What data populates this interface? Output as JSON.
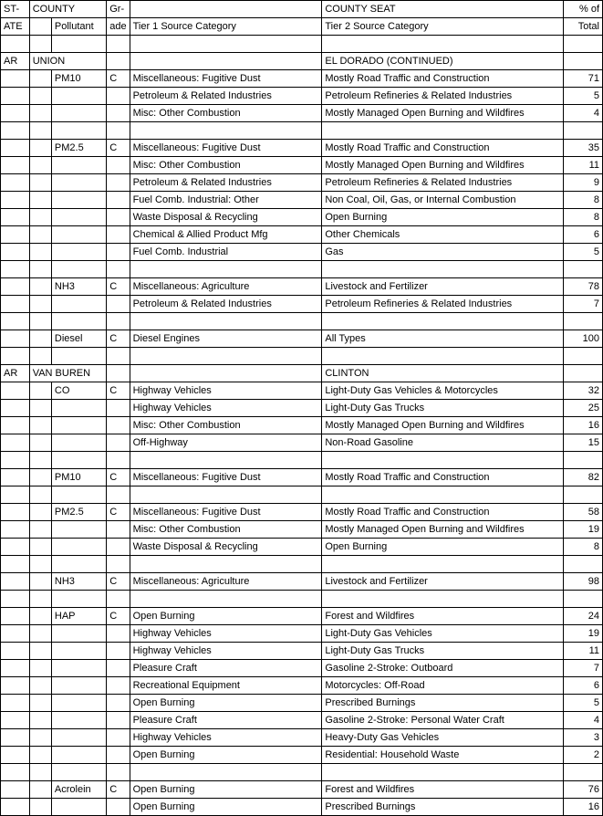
{
  "headers": {
    "state1": "ST-",
    "state2": "ATE",
    "county": "COUNTY",
    "pollutant": "Pollutant",
    "grade1": "Gr-",
    "grade2": "ade",
    "tier1": "Tier 1 Source Category",
    "county_seat": "COUNTY SEAT",
    "tier2": "Tier 2 Source Category",
    "pct1": "% of",
    "pct2": "Total"
  },
  "rows": [
    {
      "state": "AR",
      "county": "UNION",
      "pollutant": "",
      "grade": "",
      "tier1": "",
      "tier2": "EL DORADO (CONTINUED)",
      "pct": ""
    },
    {
      "state": "",
      "county": "",
      "pollutant": "PM10",
      "grade": "C",
      "tier1": "Miscellaneous: Fugitive Dust",
      "tier2": "Mostly Road Traffic and Construction",
      "pct": "71"
    },
    {
      "state": "",
      "county": "",
      "pollutant": "",
      "grade": "",
      "tier1": "Petroleum & Related Industries",
      "tier2": "Petroleum Refineries & Related Industries",
      "pct": "5"
    },
    {
      "state": "",
      "county": "",
      "pollutant": "",
      "grade": "",
      "tier1": "Misc: Other Combustion",
      "tier2": "Mostly Managed Open Burning and Wildfires",
      "pct": "4"
    },
    {
      "state": "",
      "county": "",
      "pollutant": "",
      "grade": "",
      "tier1": "",
      "tier2": "",
      "pct": ""
    },
    {
      "state": "",
      "county": "",
      "pollutant": "PM2.5",
      "grade": "C",
      "tier1": "Miscellaneous: Fugitive Dust",
      "tier2": "Mostly Road Traffic and Construction",
      "pct": "35"
    },
    {
      "state": "",
      "county": "",
      "pollutant": "",
      "grade": "",
      "tier1": "Misc: Other Combustion",
      "tier2": "Mostly Managed Open Burning and Wildfires",
      "pct": "11"
    },
    {
      "state": "",
      "county": "",
      "pollutant": "",
      "grade": "",
      "tier1": "Petroleum & Related Industries",
      "tier2": "Petroleum Refineries & Related Industries",
      "pct": "9"
    },
    {
      "state": "",
      "county": "",
      "pollutant": "",
      "grade": "",
      "tier1": "Fuel Comb. Industrial: Other",
      "tier2": "Non Coal, Oil, Gas, or Internal Combustion",
      "pct": "8"
    },
    {
      "state": "",
      "county": "",
      "pollutant": "",
      "grade": "",
      "tier1": "Waste Disposal & Recycling",
      "tier2": "Open Burning",
      "pct": "8"
    },
    {
      "state": "",
      "county": "",
      "pollutant": "",
      "grade": "",
      "tier1": "Chemical & Allied Product Mfg",
      "tier2": "Other Chemicals",
      "pct": "6"
    },
    {
      "state": "",
      "county": "",
      "pollutant": "",
      "grade": "",
      "tier1": "Fuel Comb. Industrial",
      "tier2": "Gas",
      "pct": "5"
    },
    {
      "state": "",
      "county": "",
      "pollutant": "",
      "grade": "",
      "tier1": "",
      "tier2": "",
      "pct": ""
    },
    {
      "state": "",
      "county": "",
      "pollutant": "NH3",
      "grade": "C",
      "tier1": "Miscellaneous: Agriculture",
      "tier2": "Livestock and Fertilizer",
      "pct": "78"
    },
    {
      "state": "",
      "county": "",
      "pollutant": "",
      "grade": "",
      "tier1": "Petroleum & Related Industries",
      "tier2": "Petroleum Refineries & Related Industries",
      "pct": "7"
    },
    {
      "state": "",
      "county": "",
      "pollutant": "",
      "grade": "",
      "tier1": "",
      "tier2": "",
      "pct": ""
    },
    {
      "state": "",
      "county": "",
      "pollutant": "Diesel",
      "grade": "C",
      "tier1": "Diesel Engines",
      "tier2": "All Types",
      "pct": "100"
    },
    {
      "state": "",
      "county": "",
      "pollutant": "",
      "grade": "",
      "tier1": "",
      "tier2": "",
      "pct": ""
    },
    {
      "state": "AR",
      "county": "VAN BUREN",
      "pollutant": "",
      "grade": "",
      "tier1": "",
      "tier2": "CLINTON",
      "pct": ""
    },
    {
      "state": "",
      "county": "",
      "pollutant": "CO",
      "grade": "C",
      "tier1": "Highway Vehicles",
      "tier2": "Light-Duty Gas Vehicles & Motorcycles",
      "pct": "32"
    },
    {
      "state": "",
      "county": "",
      "pollutant": "",
      "grade": "",
      "tier1": "Highway Vehicles",
      "tier2": "Light-Duty Gas Trucks",
      "pct": "25"
    },
    {
      "state": "",
      "county": "",
      "pollutant": "",
      "grade": "",
      "tier1": "Misc: Other Combustion",
      "tier2": "Mostly Managed Open Burning and Wildfires",
      "pct": "16"
    },
    {
      "state": "",
      "county": "",
      "pollutant": "",
      "grade": "",
      "tier1": "Off-Highway",
      "tier2": "Non-Road Gasoline",
      "pct": "15"
    },
    {
      "state": "",
      "county": "",
      "pollutant": "",
      "grade": "",
      "tier1": "",
      "tier2": "",
      "pct": ""
    },
    {
      "state": "",
      "county": "",
      "pollutant": "PM10",
      "grade": "C",
      "tier1": "Miscellaneous: Fugitive Dust",
      "tier2": "Mostly Road Traffic and Construction",
      "pct": "82"
    },
    {
      "state": "",
      "county": "",
      "pollutant": "",
      "grade": "",
      "tier1": "",
      "tier2": "",
      "pct": ""
    },
    {
      "state": "",
      "county": "",
      "pollutant": "PM2.5",
      "grade": "C",
      "tier1": "Miscellaneous: Fugitive Dust",
      "tier2": "Mostly Road Traffic and Construction",
      "pct": "58"
    },
    {
      "state": "",
      "county": "",
      "pollutant": "",
      "grade": "",
      "tier1": "Misc: Other Combustion",
      "tier2": "Mostly Managed Open Burning and Wildfires",
      "pct": "19"
    },
    {
      "state": "",
      "county": "",
      "pollutant": "",
      "grade": "",
      "tier1": "Waste Disposal & Recycling",
      "tier2": "Open Burning",
      "pct": "8"
    },
    {
      "state": "",
      "county": "",
      "pollutant": "",
      "grade": "",
      "tier1": "",
      "tier2": "",
      "pct": ""
    },
    {
      "state": "",
      "county": "",
      "pollutant": "NH3",
      "grade": "C",
      "tier1": "Miscellaneous: Agriculture",
      "tier2": "Livestock and Fertilizer",
      "pct": "98"
    },
    {
      "state": "",
      "county": "",
      "pollutant": "",
      "grade": "",
      "tier1": "",
      "tier2": "",
      "pct": ""
    },
    {
      "state": "",
      "county": "",
      "pollutant": "HAP",
      "grade": "C",
      "tier1": "Open Burning",
      "tier2": "Forest and Wildfires",
      "pct": "24"
    },
    {
      "state": "",
      "county": "",
      "pollutant": "",
      "grade": "",
      "tier1": "Highway Vehicles",
      "tier2": "Light-Duty Gas Vehicles",
      "pct": "19"
    },
    {
      "state": "",
      "county": "",
      "pollutant": "",
      "grade": "",
      "tier1": "Highway Vehicles",
      "tier2": "Light-Duty Gas Trucks",
      "pct": "11"
    },
    {
      "state": "",
      "county": "",
      "pollutant": "",
      "grade": "",
      "tier1": "Pleasure Craft",
      "tier2": "Gasoline 2-Stroke: Outboard",
      "pct": "7"
    },
    {
      "state": "",
      "county": "",
      "pollutant": "",
      "grade": "",
      "tier1": "Recreational Equipment",
      "tier2": "Motorcycles: Off-Road",
      "pct": "6"
    },
    {
      "state": "",
      "county": "",
      "pollutant": "",
      "grade": "",
      "tier1": "Open Burning",
      "tier2": "Prescribed Burnings",
      "pct": "5"
    },
    {
      "state": "",
      "county": "",
      "pollutant": "",
      "grade": "",
      "tier1": "Pleasure Craft",
      "tier2": "Gasoline 2-Stroke: Personal Water Craft",
      "pct": "4"
    },
    {
      "state": "",
      "county": "",
      "pollutant": "",
      "grade": "",
      "tier1": "Highway Vehicles",
      "tier2": "Heavy-Duty Gas Vehicles",
      "pct": "3"
    },
    {
      "state": "",
      "county": "",
      "pollutant": "",
      "grade": "",
      "tier1": "Open Burning",
      "tier2": "Residential: Household Waste",
      "pct": "2"
    },
    {
      "state": "",
      "county": "",
      "pollutant": "",
      "grade": "",
      "tier1": "",
      "tier2": "",
      "pct": ""
    },
    {
      "state": "",
      "county": "",
      "pollutant": "Acrolein",
      "grade": "C",
      "tier1": "Open Burning",
      "tier2": "Forest and Wildfires",
      "pct": "76"
    },
    {
      "state": "",
      "county": "",
      "pollutant": "",
      "grade": "",
      "tier1": "Open Burning",
      "tier2": "Prescribed Burnings",
      "pct": "16"
    }
  ]
}
